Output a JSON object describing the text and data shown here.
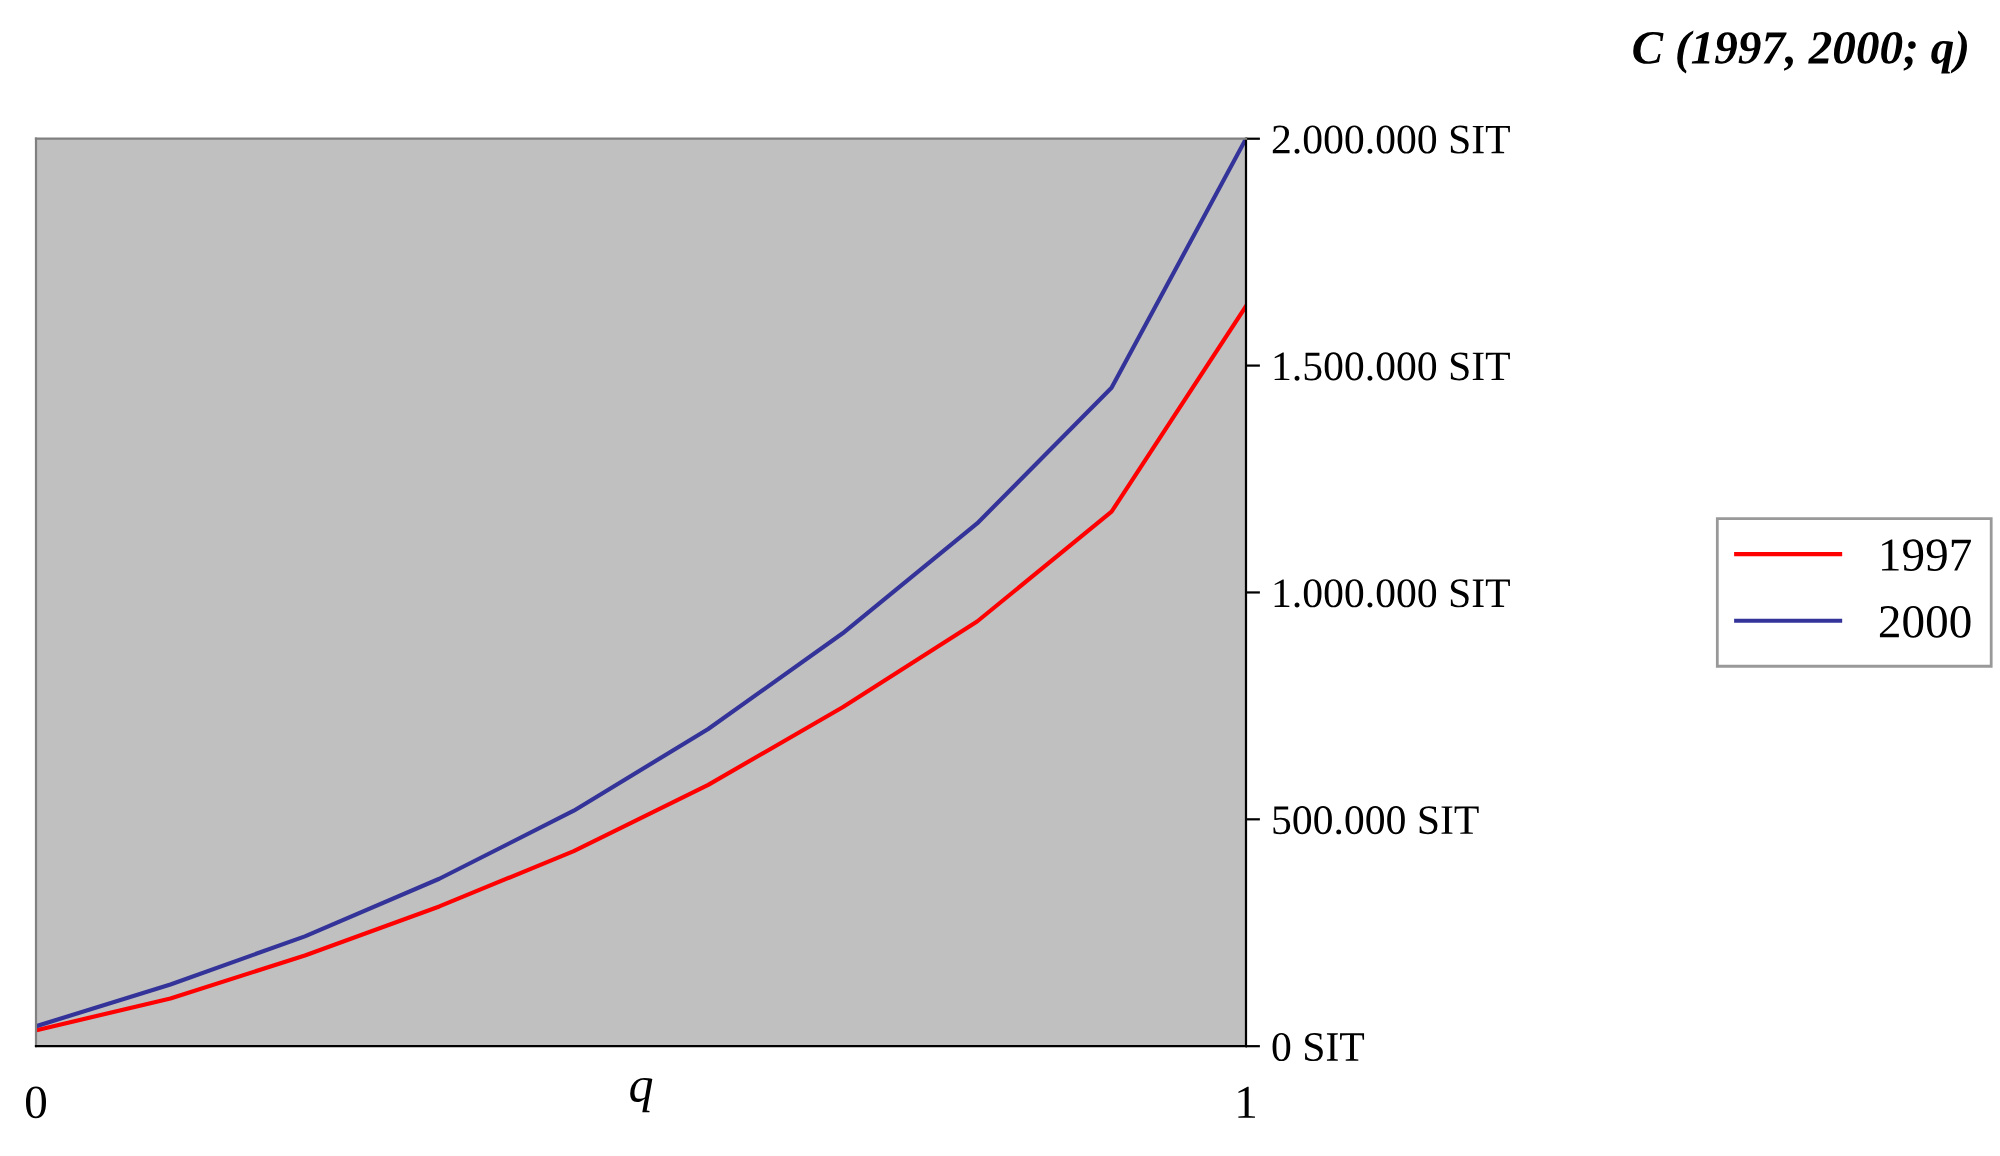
{
  "chart_data": {
    "type": "line",
    "title": "C (1997, 2000; q)",
    "xlabel": "q",
    "categories": [
      "0",
      null,
      null,
      null,
      null,
      null,
      null,
      null,
      null,
      "1"
    ],
    "series": [
      {
        "name": "1997",
        "color": "#ff0000",
        "values": [
          35000,
          105000,
          200000,
          308000,
          430000,
          576000,
          747000,
          936000,
          1178000,
          1631000
        ]
      },
      {
        "name": "2000",
        "color": "#333399",
        "values": [
          44000,
          136000,
          242000,
          369000,
          519000,
          699000,
          910000,
          1152000,
          1451000,
          2000000
        ]
      }
    ],
    "ylim": [
      0,
      2000000
    ],
    "yticks": [
      {
        "value": 0,
        "label": "0 SIT"
      },
      {
        "value": 500000,
        "label": "500.000 SIT"
      },
      {
        "value": 1000000,
        "label": "1.000.000 SIT"
      },
      {
        "value": 1500000,
        "label": "1.500.000 SIT"
      },
      {
        "value": 2000000,
        "label": "2.000.000 SIT"
      }
    ],
    "grid": false,
    "legend": "right",
    "marker": "none",
    "line_style": "solid"
  }
}
